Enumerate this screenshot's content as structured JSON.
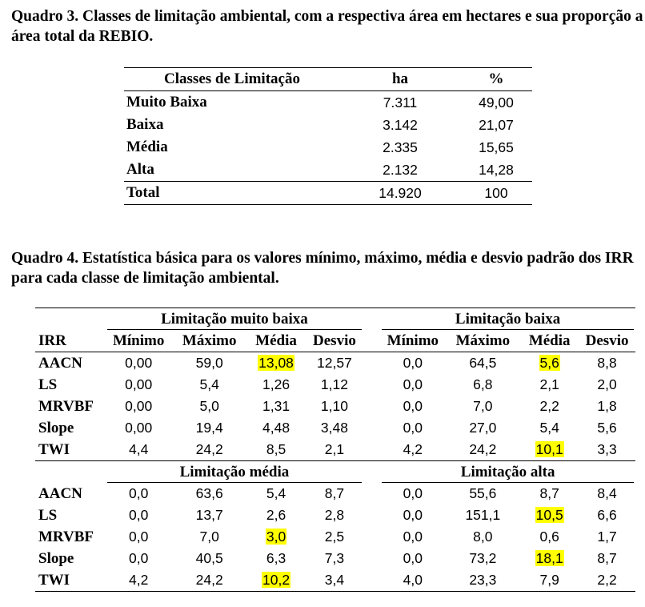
{
  "quadro3": {
    "caption": "Quadro 3. Classes de limitação ambiental, com a respectiva área em hectares e sua proporção a área total da REBIO.",
    "headers": [
      "Classes de Limitação",
      "ha",
      "%"
    ],
    "rows": [
      {
        "classe": "Muito Baixa",
        "ha": "7.311",
        "pct": "49,00"
      },
      {
        "classe": "Baixa",
        "ha": "3.142",
        "pct": "21,07"
      },
      {
        "classe": "Média",
        "ha": "2.335",
        "pct": "15,65"
      },
      {
        "classe": "Alta",
        "ha": "2.132",
        "pct": "14,28"
      }
    ],
    "total": {
      "classe": "Total",
      "ha": "14.920",
      "pct": "100"
    }
  },
  "quadro4": {
    "caption": "Quadro 4. Estatística básica para os valores mínimo, máximo, média e desvio padrão dos IRR para cada classe de limitação ambiental.",
    "irr_header": "IRR",
    "stat_headers": [
      "Mínimo",
      "Máximo",
      "Média",
      "Desvio"
    ],
    "highlight_color": "#ffff00",
    "blocks": [
      {
        "left_group": "Limitação muito baixa",
        "right_group": "Limitação baixa",
        "rows": [
          {
            "irr": "AACN",
            "left": [
              "0,00",
              "59,0",
              "13,08",
              "12,57"
            ],
            "right": [
              "0,0",
              "64,5",
              "5,6",
              "8,8"
            ],
            "hl_left": 2,
            "hl_right": 2
          },
          {
            "irr": "LS",
            "left": [
              "0,00",
              "5,4",
              "1,26",
              "1,12"
            ],
            "right": [
              "0,0",
              "6,8",
              "2,1",
              "2,0"
            ],
            "hl_left": -1,
            "hl_right": -1
          },
          {
            "irr": "MRVBF",
            "left": [
              "0,00",
              "5,0",
              "1,31",
              "1,10"
            ],
            "right": [
              "0,0",
              "7,0",
              "2,2",
              "1,8"
            ],
            "hl_left": -1,
            "hl_right": -1
          },
          {
            "irr": "Slope",
            "left": [
              "0,00",
              "19,4",
              "4,48",
              "3,48"
            ],
            "right": [
              "0,0",
              "27,0",
              "5,4",
              "5,6"
            ],
            "hl_left": -1,
            "hl_right": -1
          },
          {
            "irr": "TWI",
            "left": [
              "4,4",
              "24,2",
              "8,5",
              "2,1"
            ],
            "right": [
              "4,2",
              "24,2",
              "10,1",
              "3,3"
            ],
            "hl_left": -1,
            "hl_right": 2
          }
        ]
      },
      {
        "left_group": "Limitação média",
        "right_group": "Limitação alta",
        "rows": [
          {
            "irr": "AACN",
            "left": [
              "0,0",
              "63,6",
              "5,4",
              "8,7"
            ],
            "right": [
              "0,0",
              "55,6",
              "8,7",
              "8,4"
            ],
            "hl_left": -1,
            "hl_right": -1
          },
          {
            "irr": "LS",
            "left": [
              "0,0",
              "13,7",
              "2,6",
              "2,8"
            ],
            "right": [
              "0,0",
              "151,1",
              "10,5",
              "6,6"
            ],
            "hl_left": -1,
            "hl_right": 2
          },
          {
            "irr": "MRVBF",
            "left": [
              "0,0",
              "7,0",
              "3,0",
              "2,5"
            ],
            "right": [
              "0,0",
              "8,0",
              "0,6",
              "1,7"
            ],
            "hl_left": 2,
            "hl_right": -1
          },
          {
            "irr": "Slope",
            "left": [
              "0,0",
              "40,5",
              "6,3",
              "7,3"
            ],
            "right": [
              "0,0",
              "73,2",
              "18,1",
              "8,7"
            ],
            "hl_left": -1,
            "hl_right": 2
          },
          {
            "irr": "TWI",
            "left": [
              "4,2",
              "24,2",
              "10,2",
              "3,4"
            ],
            "right": [
              "4,0",
              "23,3",
              "7,9",
              "2,2"
            ],
            "hl_left": 2,
            "hl_right": -1
          }
        ]
      }
    ]
  }
}
